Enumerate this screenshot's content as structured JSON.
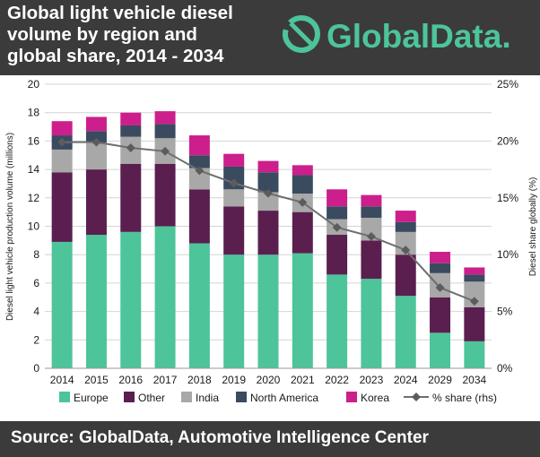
{
  "header": {
    "title": "Global light vehicle diesel\nvolume by region and\nglobal share, 2014 - 2034",
    "brand_name": "GlobalData.",
    "logo_icon": "globaldata-ring-logo-icon"
  },
  "footer": {
    "source": "Source:  GlobalData, Automotive Intelligence Center"
  },
  "colors": {
    "header_bg": "#3b3b3b",
    "brand_green": "#4dc49a",
    "europe": "#4dc49a",
    "other": "#5a1f4f",
    "india": "#a8a8a8",
    "north_america": "#3a4a5f",
    "korea": "#cc1f8c",
    "share_line": "#6e6e6e"
  },
  "chart_data": {
    "type": "bar",
    "stacked": true,
    "categories": [
      "2014",
      "2015",
      "2016",
      "2017",
      "2018",
      "2019",
      "2020",
      "2021",
      "2022",
      "2023",
      "2024",
      "2029",
      "2034"
    ],
    "series": [
      {
        "name": "Europe",
        "color": "#4dc49a",
        "values": [
          8.9,
          9.4,
          9.6,
          10.0,
          8.8,
          8.0,
          8.0,
          8.1,
          6.6,
          6.3,
          5.1,
          2.5,
          1.9
        ]
      },
      {
        "name": "Other",
        "color": "#5a1f4f",
        "values": [
          4.9,
          4.6,
          4.8,
          4.4,
          3.8,
          3.4,
          3.1,
          2.9,
          2.8,
          2.7,
          2.9,
          2.5,
          2.4
        ]
      },
      {
        "name": "India",
        "color": "#a8a8a8",
        "values": [
          1.6,
          1.9,
          1.9,
          1.8,
          1.5,
          1.2,
          1.3,
          1.3,
          1.1,
          1.6,
          1.6,
          1.7,
          1.8
        ]
      },
      {
        "name": "North America",
        "color": "#3a4a5f",
        "values": [
          1.0,
          0.8,
          0.8,
          1.0,
          0.9,
          1.6,
          1.4,
          1.3,
          0.9,
          0.8,
          0.7,
          0.7,
          0.5
        ]
      },
      {
        "name": "Korea",
        "color": "#cc1f8c",
        "values": [
          1.0,
          1.0,
          0.9,
          0.9,
          1.4,
          0.9,
          0.8,
          0.7,
          1.2,
          0.8,
          0.8,
          0.8,
          0.5
        ]
      }
    ],
    "line_series": {
      "name": "% share (rhs)",
      "axis": "right",
      "color": "#6e6e6e",
      "values": [
        19.9,
        19.9,
        19.4,
        19.1,
        17.4,
        16.3,
        15.4,
        14.6,
        12.4,
        11.6,
        10.4,
        7.1,
        5.9
      ]
    },
    "ylabel": "Diesel light vehicle production volume (millions)",
    "y2label": "Diesel share globally (%)",
    "ylim": [
      0,
      20
    ],
    "yticks": [
      "0",
      "2",
      "4",
      "6",
      "8",
      "10",
      "12",
      "14",
      "16",
      "18",
      "20"
    ],
    "y2lim": [
      0,
      25
    ],
    "y2ticks": [
      "0%",
      "5%",
      "10%",
      "15%",
      "20%",
      "25%"
    ],
    "grid": true,
    "legend_position": "bottom",
    "legend": [
      "Europe",
      "Other",
      "India",
      "North America",
      "Korea",
      "% share (rhs)"
    ]
  }
}
